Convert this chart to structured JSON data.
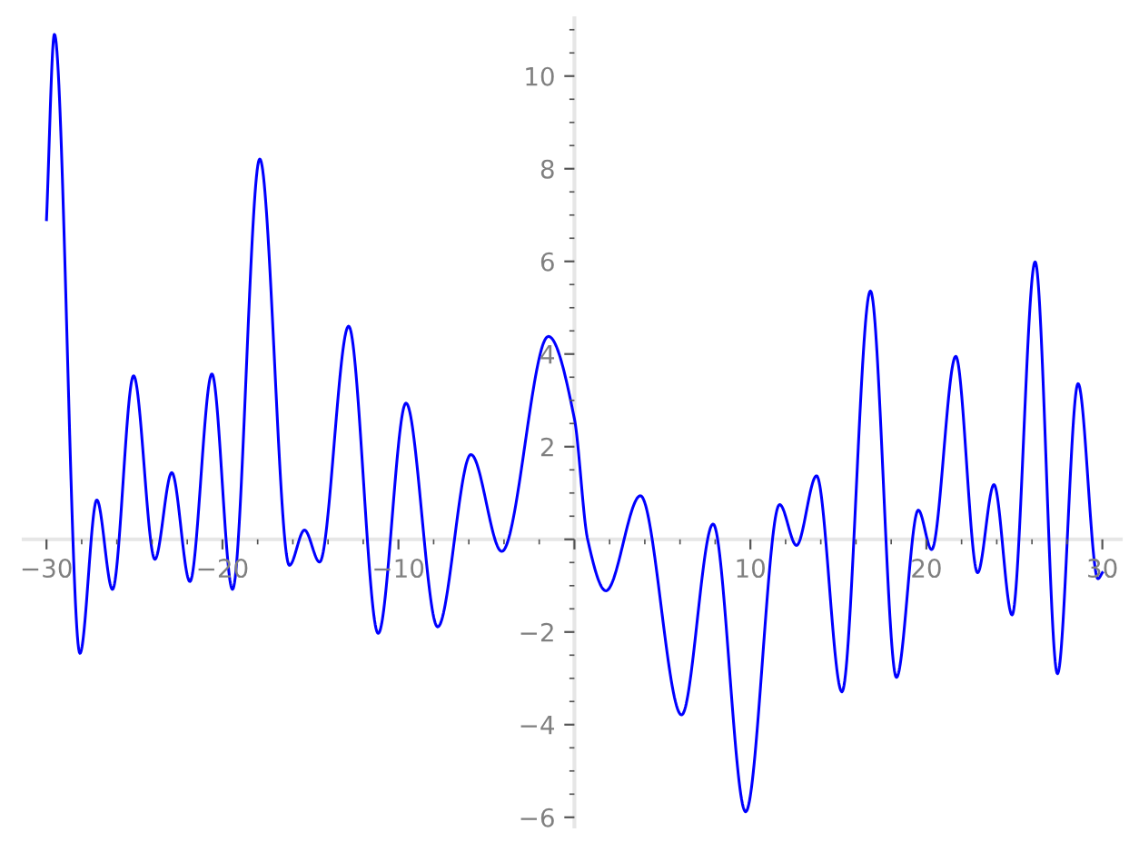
{
  "chart_data": {
    "type": "line",
    "x": [
      -30,
      -29.55,
      -28.1,
      -27.14,
      -26.25,
      -25.05,
      -23.84,
      -22.88,
      -21.85,
      -20.6,
      -19.43,
      -17.88,
      -16.2,
      -15.34,
      -14.48,
      -12.83,
      -11.15,
      -9.57,
      -7.77,
      -5.88,
      -4.13,
      -1.48,
      0,
      0.75,
      1.79,
      3.75,
      6.09,
      7.88,
      9.73,
      11.66,
      12.62,
      13.76,
      15.2,
      16.82,
      18.3,
      19.54,
      20.3,
      21.67,
      22.91,
      23.84,
      24.87,
      26.18,
      27.45,
      28.62,
      29.75,
      30
    ],
    "series": [
      {
        "color": "#0000ff",
        "values": [
          6.9,
          10.9,
          -2.46,
          0.85,
          -1.08,
          3.53,
          -0.43,
          1.44,
          -0.91,
          3.57,
          -1.08,
          8.21,
          -0.56,
          0.2,
          -0.49,
          4.6,
          -2.03,
          2.94,
          -1.89,
          1.83,
          -0.26,
          4.38,
          2.6,
          0,
          -1.11,
          0.94,
          -3.79,
          0.33,
          -5.88,
          0.75,
          -0.13,
          1.37,
          -3.29,
          5.36,
          -2.98,
          0.63,
          -0.22,
          3.95,
          -0.72,
          1.18,
          -1.63,
          5.99,
          -2.9,
          3.36,
          -0.85,
          -0.72
        ]
      }
    ],
    "xlim": [
      -31.3,
      31.05
    ],
    "ylim": [
      -6.2,
      11.25
    ],
    "xticks": [
      -30,
      -20,
      -10,
      {
        "value": 0,
        "label": null
      },
      10,
      20,
      30
    ],
    "yticks": [
      -6,
      -4,
      -2,
      {
        "value": 0,
        "label": null
      },
      2,
      4,
      6,
      8,
      10
    ],
    "grid": false,
    "marker": "none",
    "line_style": "solid"
  }
}
